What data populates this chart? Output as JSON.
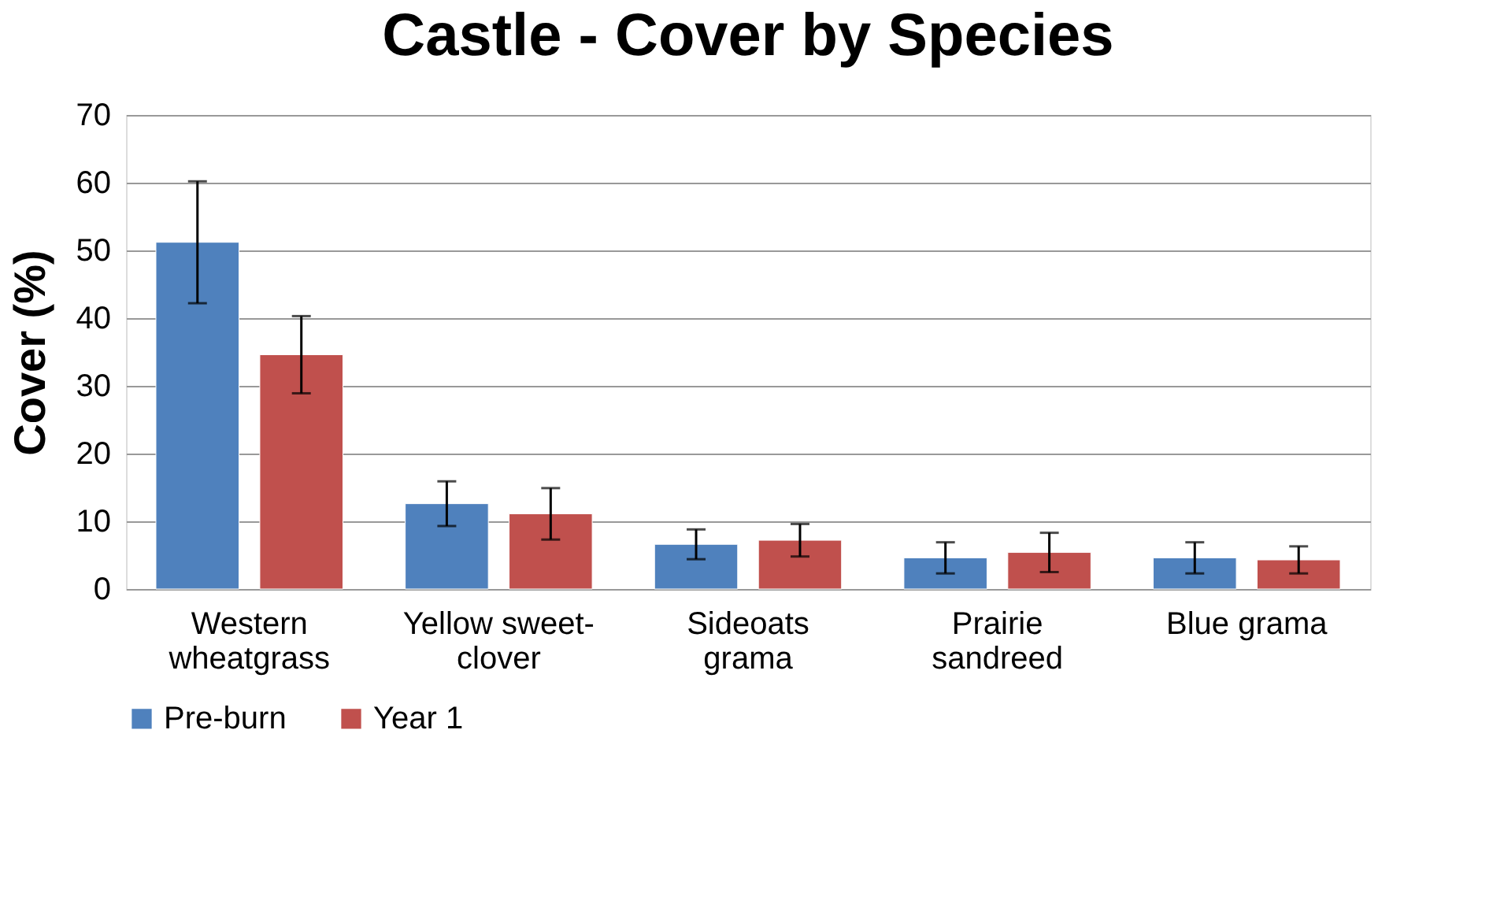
{
  "chart_data": {
    "type": "bar",
    "title": "Castle - Cover by Species",
    "ylabel": "Cover (%)",
    "categories": [
      "Western wheatgrass",
      "Yellow sweet-clover",
      "Sideoats grama",
      "Prairie sandreed",
      "Blue grama"
    ],
    "series": [
      {
        "name": "Pre-burn",
        "color": "#4f81bd",
        "values": [
          51.2,
          12.6,
          6.6,
          4.6,
          4.6
        ],
        "errors": [
          9.0,
          3.3,
          2.2,
          2.3,
          2.3
        ]
      },
      {
        "name": "Year 1",
        "color": "#c0504d",
        "values": [
          34.6,
          11.1,
          7.2,
          5.4,
          4.3
        ],
        "errors": [
          5.7,
          3.8,
          2.4,
          2.9,
          2.0
        ]
      }
    ],
    "ylim": [
      0,
      70
    ],
    "yticks": [
      0,
      10,
      20,
      30,
      40,
      50,
      60,
      70
    ],
    "grid": "y",
    "legend": "bottom"
  }
}
